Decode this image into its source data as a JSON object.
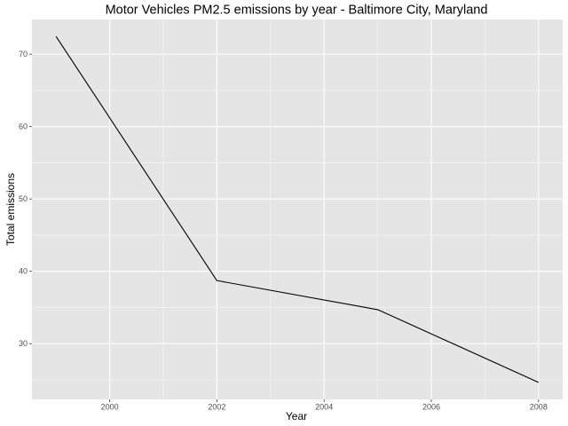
{
  "chart_data": {
    "type": "line",
    "title": "Motor Vehicles PM2.5 emissions by year - Baltimore City, Maryland",
    "xlabel": "Year",
    "ylabel": "Total emissions",
    "x": [
      1999,
      2002,
      2005,
      2008
    ],
    "series": [
      {
        "values": [
          72.46,
          38.72,
          34.7,
          24.65
        ]
      }
    ],
    "xlim": [
      1998.55,
      2008.45
    ],
    "ylim": [
      22.3,
      74.8
    ],
    "x_ticks": [
      2000,
      2002,
      2004,
      2006,
      2008
    ],
    "x_tick_labels": [
      "2000",
      "2002",
      "2004",
      "2006",
      "2008"
    ],
    "y_ticks": [
      30,
      40,
      50,
      60,
      70
    ],
    "y_tick_labels": [
      "30",
      "40",
      "50",
      "60",
      "70"
    ],
    "grid": true,
    "legend": "none",
    "colors": {
      "panel_background": "#e5e5e5",
      "grid_major": "#ffffff",
      "line": "#000000",
      "tick_text": "#4d4d4d",
      "tick_mark": "#333333"
    }
  }
}
